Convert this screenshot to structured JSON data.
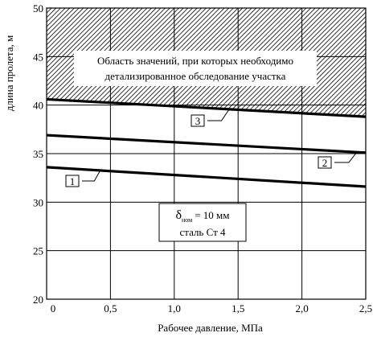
{
  "chart_data": {
    "type": "line",
    "xlabel": "Рабочее давление, МПа",
    "ylabel": "длина пролета, м",
    "xlim": [
      0,
      2.5
    ],
    "ylim": [
      20,
      50
    ],
    "x_ticks": [
      "0",
      "0,5",
      "1,0",
      "1,5",
      "2,0",
      "2,5"
    ],
    "y_ticks": [
      "20",
      "25",
      "30",
      "35",
      "40",
      "45",
      "50"
    ],
    "grid": true,
    "series": [
      {
        "name": "1",
        "x": [
          0,
          2.5
        ],
        "y": [
          33.6,
          31.6
        ]
      },
      {
        "name": "2",
        "x": [
          0,
          2.5
        ],
        "y": [
          36.9,
          35.1
        ]
      },
      {
        "name": "3",
        "x": [
          0,
          2.5
        ],
        "y": [
          40.6,
          38.8
        ]
      }
    ],
    "region": {
      "label_line1": "Область значений, при которых необходимо",
      "label_line2": "детализированное обследование участка"
    },
    "annotation": {
      "symbol": "δ",
      "subscript": "ном",
      "value_text": "= 10 мм",
      "material": "сталь Ст 4"
    }
  }
}
